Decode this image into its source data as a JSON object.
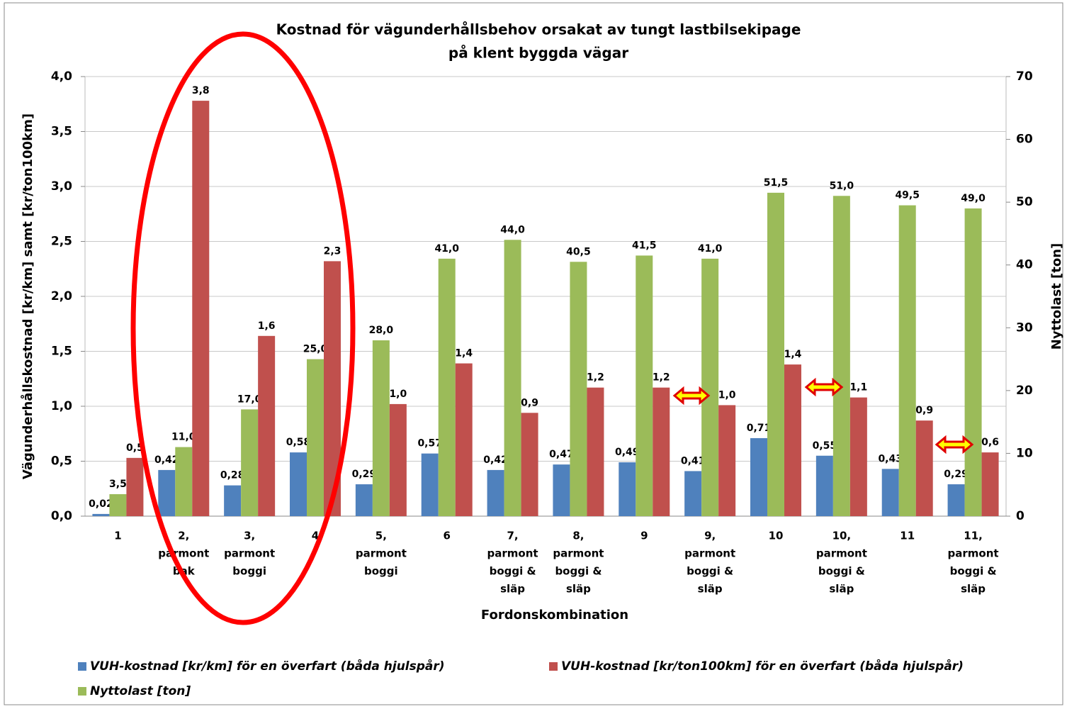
{
  "chart_data": {
    "type": "bar",
    "title": [
      "Kostnad för vägunderhållsbehov orsakat av tungt lastbilsekipage",
      "på klent byggda vägar"
    ],
    "x_label": "Fordonskombination",
    "y_label": "Vägunderhållskostnad [kr/km] samt [kr/ton100km]",
    "y2_label": "Nyttolast [ton]",
    "categories": [
      [
        "1"
      ],
      [
        "2,",
        "parmont",
        "bak"
      ],
      [
        "3,",
        "parmont",
        "boggi"
      ],
      [
        "4"
      ],
      [
        "5,",
        "parmont",
        "boggi"
      ],
      [
        "6"
      ],
      [
        "7,",
        "parmont",
        "boggi &",
        "släp"
      ],
      [
        "8,",
        "parmont",
        "boggi &",
        "släp"
      ],
      [
        "9"
      ],
      [
        "9,",
        "parmont",
        "boggi &",
        "släp"
      ],
      [
        "10"
      ],
      [
        "10,",
        "parmont",
        "boggi &",
        "släp"
      ],
      [
        "11"
      ],
      [
        "11,",
        "parmont",
        "boggi &",
        "släp"
      ]
    ],
    "series": [
      {
        "name": "VUH-kostnad [kr/km] för en överfart (båda hjulspår)",
        "color": "#4f81bd",
        "values": [
          0.02,
          0.42,
          0.28,
          0.58,
          0.29,
          0.57,
          0.42,
          0.47,
          0.49,
          0.41,
          0.71,
          0.55,
          0.43,
          0.29
        ],
        "value_labels": [
          "0,02",
          "0,42",
          "0,28",
          "0,58",
          "0,29",
          "0,57",
          "0,42",
          "0,47",
          "0,49",
          "0,41",
          "0,71",
          "0,55",
          "0,43",
          "0,29"
        ]
      },
      {
        "name": "Nyttolast [ton]",
        "color": "#9bbb59",
        "axis": "y2",
        "values": [
          3.5,
          11,
          17,
          25,
          28,
          41,
          44,
          40.5,
          41.5,
          41,
          51.5,
          51,
          49.5,
          49
        ],
        "value_labels": [
          "3,5",
          "11,0",
          "17,0",
          "25,0",
          "28,0",
          "41,0",
          "44,0",
          "40,5",
          "41,5",
          "41,0",
          "51,5",
          "51,0",
          "49,5",
          "49,0"
        ]
      },
      {
        "name": "VUH-kostnad [kr/ton100km] för en överfart (båda hjulspår)",
        "color": "#c0504d",
        "values": [
          0.53,
          3.78,
          1.64,
          2.32,
          1.02,
          1.39,
          0.94,
          1.17,
          1.17,
          1.01,
          1.38,
          1.08,
          0.87,
          0.58
        ],
        "value_labels": [
          "0,5",
          "3,8",
          "1,6",
          "2,3",
          "1,0",
          "1,4",
          "0,9",
          "1,2",
          "1,2",
          "1,0",
          "1,4",
          "1,1",
          "0,9",
          "0,6"
        ]
      }
    ],
    "ylim": [
      0,
      4
    ],
    "yticks": [
      {
        "value": 0,
        "label": "0,0"
      },
      {
        "value": 0.5,
        "label": "0,5"
      },
      {
        "value": 1,
        "label": "1,0"
      },
      {
        "value": 1.5,
        "label": "1,5"
      },
      {
        "value": 2,
        "label": "2,0"
      },
      {
        "value": 2.5,
        "label": "2,5"
      },
      {
        "value": 3,
        "label": "3,0"
      },
      {
        "value": 3.5,
        "label": "3,5"
      },
      {
        "value": 4,
        "label": "4,0"
      }
    ],
    "y2lim": [
      0,
      70
    ],
    "y2ticks": [
      0,
      10,
      20,
      30,
      40,
      50,
      60,
      70
    ],
    "grid": true
  }
}
